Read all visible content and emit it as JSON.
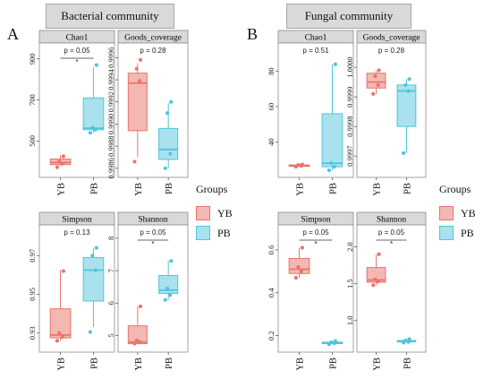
{
  "sections": [
    {
      "letter": "A",
      "title": "Bacterial community"
    },
    {
      "letter": "B",
      "title": "Fungal community"
    }
  ],
  "legend": {
    "title": "Groups",
    "entries": [
      "YB",
      "PB"
    ]
  },
  "colors": {
    "YB": "#e8746a",
    "PB": "#4fc5dd",
    "strip": "#d9d9d9"
  },
  "chart_data": [
    {
      "type": "box",
      "group": "A",
      "title": "Chao1",
      "pvalue": "p = 0.05",
      "sig": "*",
      "categories": [
        "YB",
        "PB"
      ],
      "ticks": [
        "500",
        "700",
        "900"
      ],
      "ylim": [
        340,
        960
      ],
      "series": [
        {
          "name": "YB",
          "min": 378,
          "q1": 385,
          "median": 395,
          "q3": 412,
          "max": 430,
          "points": [
            372,
            390,
            400,
            425
          ]
        },
        {
          "name": "PB",
          "min": 540,
          "q1": 555,
          "median": 562,
          "q3": 710,
          "max": 860,
          "points": [
            540,
            555,
            565,
            870
          ]
        }
      ]
    },
    {
      "type": "box",
      "group": "A",
      "title": "Goods_coverage",
      "pvalue": "p = 0.28",
      "sig": "",
      "categories": [
        "YB",
        "PB"
      ],
      "ticks": [
        "0.9986",
        "0.9988",
        "0.9990",
        "0.9992",
        "0.9994",
        "0.9996"
      ],
      "ylim": [
        0.99855,
        0.9997
      ],
      "series": [
        {
          "name": "YB",
          "min": 0.9987,
          "q1": 0.99894,
          "median": 0.99937,
          "q3": 0.99946,
          "max": 0.99955,
          "points": [
            0.99866,
            0.99939,
            0.9995,
            0.99958
          ]
        },
        {
          "name": "PB",
          "min": 0.9986,
          "q1": 0.99868,
          "median": 0.99877,
          "q3": 0.99896,
          "max": 0.99919,
          "points": [
            0.9986,
            0.99873,
            0.9991,
            0.9992
          ]
        }
      ]
    },
    {
      "type": "box",
      "group": "A",
      "title": "Simpson",
      "pvalue": "p = 0.13",
      "sig": "",
      "categories": [
        "YB",
        "PB"
      ],
      "ticks": [
        "0.93",
        "0.95",
        "0.97"
      ],
      "ylim": [
        0.922,
        0.984
      ],
      "series": [
        {
          "name": "YB",
          "min": 0.926,
          "q1": 0.9275,
          "median": 0.929,
          "q3": 0.9425,
          "max": 0.9625,
          "points": [
            0.926,
            0.928,
            0.93,
            0.962
          ]
        },
        {
          "name": "PB",
          "min": 0.933,
          "q1": 0.9465,
          "median": 0.9625,
          "q3": 0.969,
          "max": 0.974,
          "points": [
            0.9305,
            0.9625,
            0.97,
            0.974
          ]
        }
      ]
    },
    {
      "type": "box",
      "group": "A",
      "title": "Shannon",
      "pvalue": "p = 0.05",
      "sig": "*",
      "categories": [
        "YB",
        "PB"
      ],
      "ticks": [
        "5",
        "6",
        "7",
        "8"
      ],
      "ylim": [
        4.6,
        8.3
      ],
      "series": [
        {
          "name": "YB",
          "min": 4.75,
          "q1": 4.75,
          "median": 4.8,
          "q3": 5.3,
          "max": 5.9,
          "points": [
            4.75,
            4.8,
            4.85,
            5.9
          ]
        },
        {
          "name": "PB",
          "min": 6.1,
          "q1": 6.3,
          "median": 6.4,
          "q3": 6.85,
          "max": 7.3,
          "points": [
            6.1,
            6.25,
            6.45,
            7.3
          ]
        }
      ]
    },
    {
      "type": "box",
      "group": "B",
      "title": "Chao1",
      "pvalue": "p = 0.51",
      "sig": "",
      "categories": [
        "YB",
        "PB"
      ],
      "ticks": [
        "40",
        "60",
        "80"
      ],
      "ylim": [
        22,
        94
      ],
      "series": [
        {
          "name": "YB",
          "min": 26,
          "q1": 26.3,
          "median": 26.6,
          "q3": 27,
          "max": 27.3,
          "points": [
            26,
            26.5,
            27,
            27.3
          ]
        },
        {
          "name": "PB",
          "min": 24,
          "q1": 26,
          "median": 28,
          "q3": 56,
          "max": 84,
          "points": [
            24,
            26,
            28,
            84
          ]
        }
      ]
    },
    {
      "type": "box",
      "group": "B",
      "title": "Goods_coverage",
      "pvalue": "p = 0.28",
      "sig": "",
      "categories": [
        "YB",
        "PB"
      ],
      "ticks": [
        "0.9997",
        "0.9998",
        "0.9999",
        "1.0000"
      ],
      "ylim": [
        0.99964,
        1.00007
      ],
      "series": [
        {
          "name": "YB",
          "min": 0.99991,
          "q1": 0.99993,
          "median": 0.99995,
          "q3": 0.99998,
          "max": 0.99999,
          "points": [
            0.99991,
            0.99994,
            0.99997,
            0.99999
          ]
        },
        {
          "name": "PB",
          "min": 0.99971,
          "q1": 0.9998,
          "median": 0.99992,
          "q3": 0.99994,
          "max": 0.99996,
          "points": [
            0.99971,
            0.99992,
            0.99994,
            0.99996
          ]
        }
      ]
    },
    {
      "type": "box",
      "group": "B",
      "title": "Simpson",
      "pvalue": "p = 0.05",
      "sig": "*",
      "categories": [
        "YB",
        "PB"
      ],
      "ticks": [
        "0.2",
        "0.4",
        "0.6"
      ],
      "ylim": [
        0.14,
        0.7
      ],
      "series": [
        {
          "name": "YB",
          "min": 0.47,
          "q1": 0.49,
          "median": 0.51,
          "q3": 0.56,
          "max": 0.61,
          "points": [
            0.47,
            0.5,
            0.52,
            0.61
          ]
        },
        {
          "name": "PB",
          "min": 0.16,
          "q1": 0.163,
          "median": 0.166,
          "q3": 0.17,
          "max": 0.174,
          "points": [
            0.16,
            0.165,
            0.17,
            0.175
          ]
        }
      ]
    },
    {
      "type": "box",
      "group": "B",
      "title": "Shannon",
      "pvalue": "p = 0.05",
      "sig": "*",
      "categories": [
        "YB",
        "PB"
      ],
      "ticks": [
        "1.0",
        "1.5",
        "2.0"
      ],
      "ylim": [
        0.62,
        2.25
      ],
      "series": [
        {
          "name": "YB",
          "min": 1.48,
          "q1": 1.52,
          "median": 1.55,
          "q3": 1.72,
          "max": 1.9,
          "points": [
            1.48,
            1.53,
            1.56,
            1.9
          ]
        },
        {
          "name": "PB",
          "min": 0.7,
          "q1": 0.71,
          "median": 0.72,
          "q3": 0.73,
          "max": 0.75,
          "points": [
            0.7,
            0.71,
            0.73,
            0.75
          ]
        }
      ]
    }
  ]
}
